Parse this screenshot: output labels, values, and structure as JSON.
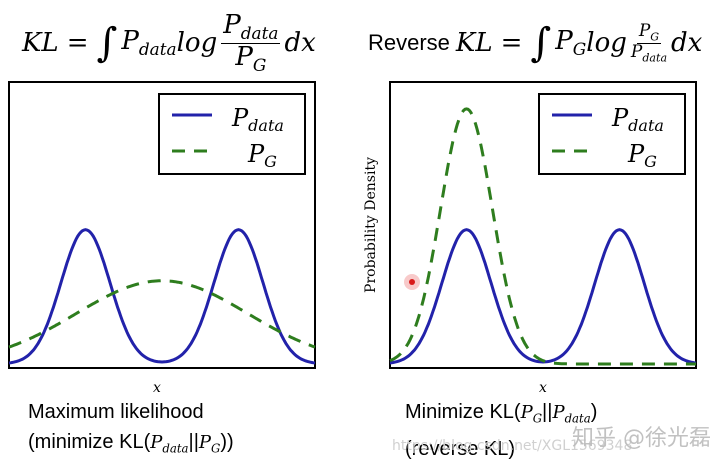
{
  "formulas": {
    "left": {
      "lhs": "KL",
      "eq": "=",
      "integral": "∫",
      "p": "P",
      "p_sub": "data",
      "log": "log",
      "num_p": "P",
      "num_sub": "data",
      "den_p": "P",
      "den_sub": "G",
      "dx": "dx"
    },
    "right": {
      "prefix": "Reverse",
      "lhs": "KL",
      "eq": "=",
      "integral": "∫",
      "p": "P",
      "p_sub": "G",
      "log": "log",
      "num_p": "P",
      "num_sub": "G",
      "den_p": "P",
      "den_sub": "data",
      "dx": "dx"
    }
  },
  "chart_data": [
    {
      "type": "line",
      "title": "Maximum likelihood (minimize KL(P_data||P_G))",
      "xlabel": "x",
      "ylabel": "",
      "xlim": [
        0,
        10
      ],
      "ylim": [
        0,
        1.1
      ],
      "legend_position": "top-right",
      "series": [
        {
          "name": "P_data",
          "style": "solid",
          "color": "#2222aa",
          "distribution": "bimodal gaussian",
          "means": [
            2.5,
            7.5
          ],
          "std": 0.8,
          "peak": 1.0
        },
        {
          "name": "P_G",
          "style": "dashed",
          "color": "#2e7d1e",
          "distribution": "gaussian",
          "mean": 5.0,
          "std": 2.8,
          "peak": 0.62
        }
      ]
    },
    {
      "type": "line",
      "title": "Minimize KL(P_G||P_data) (reverse KL)",
      "xlabel": "x",
      "ylabel": "Probability Density",
      "xlim": [
        0,
        10
      ],
      "ylim": [
        0,
        1.9
      ],
      "legend_position": "top-right",
      "series": [
        {
          "name": "P_data",
          "style": "solid",
          "color": "#2222aa",
          "distribution": "bimodal gaussian",
          "means": [
            2.5,
            7.5
          ],
          "std": 0.8,
          "peak": 1.0
        },
        {
          "name": "P_G",
          "style": "dashed",
          "color": "#2e7d1e",
          "distribution": "gaussian",
          "mean": 2.5,
          "std": 0.85,
          "peak": 1.9
        }
      ]
    }
  ],
  "legend": {
    "p_data_main": "P",
    "p_data_sub": "data",
    "p_g_main": "P",
    "p_g_sub": "G"
  },
  "captions": {
    "left_line1": "Maximum likelihood",
    "left_line2_pre": "(minimize KL(",
    "left_line2_post": "))",
    "left_p1": "P",
    "left_p1_sub": "data",
    "left_sep": "||",
    "left_p2": "P",
    "left_p2_sub": "G",
    "right_line1_pre": "Minimize KL(",
    "right_line1_post": ")",
    "right_p1": "P",
    "right_p1_sub": "G",
    "right_sep": "||",
    "right_p2": "P",
    "right_p2_sub": "data",
    "right_line2": "(reverse KL)"
  },
  "watermark": {
    "cn": "知乎 @徐光磊",
    "url": "https://blog.csdn.net/XGL1569348"
  }
}
